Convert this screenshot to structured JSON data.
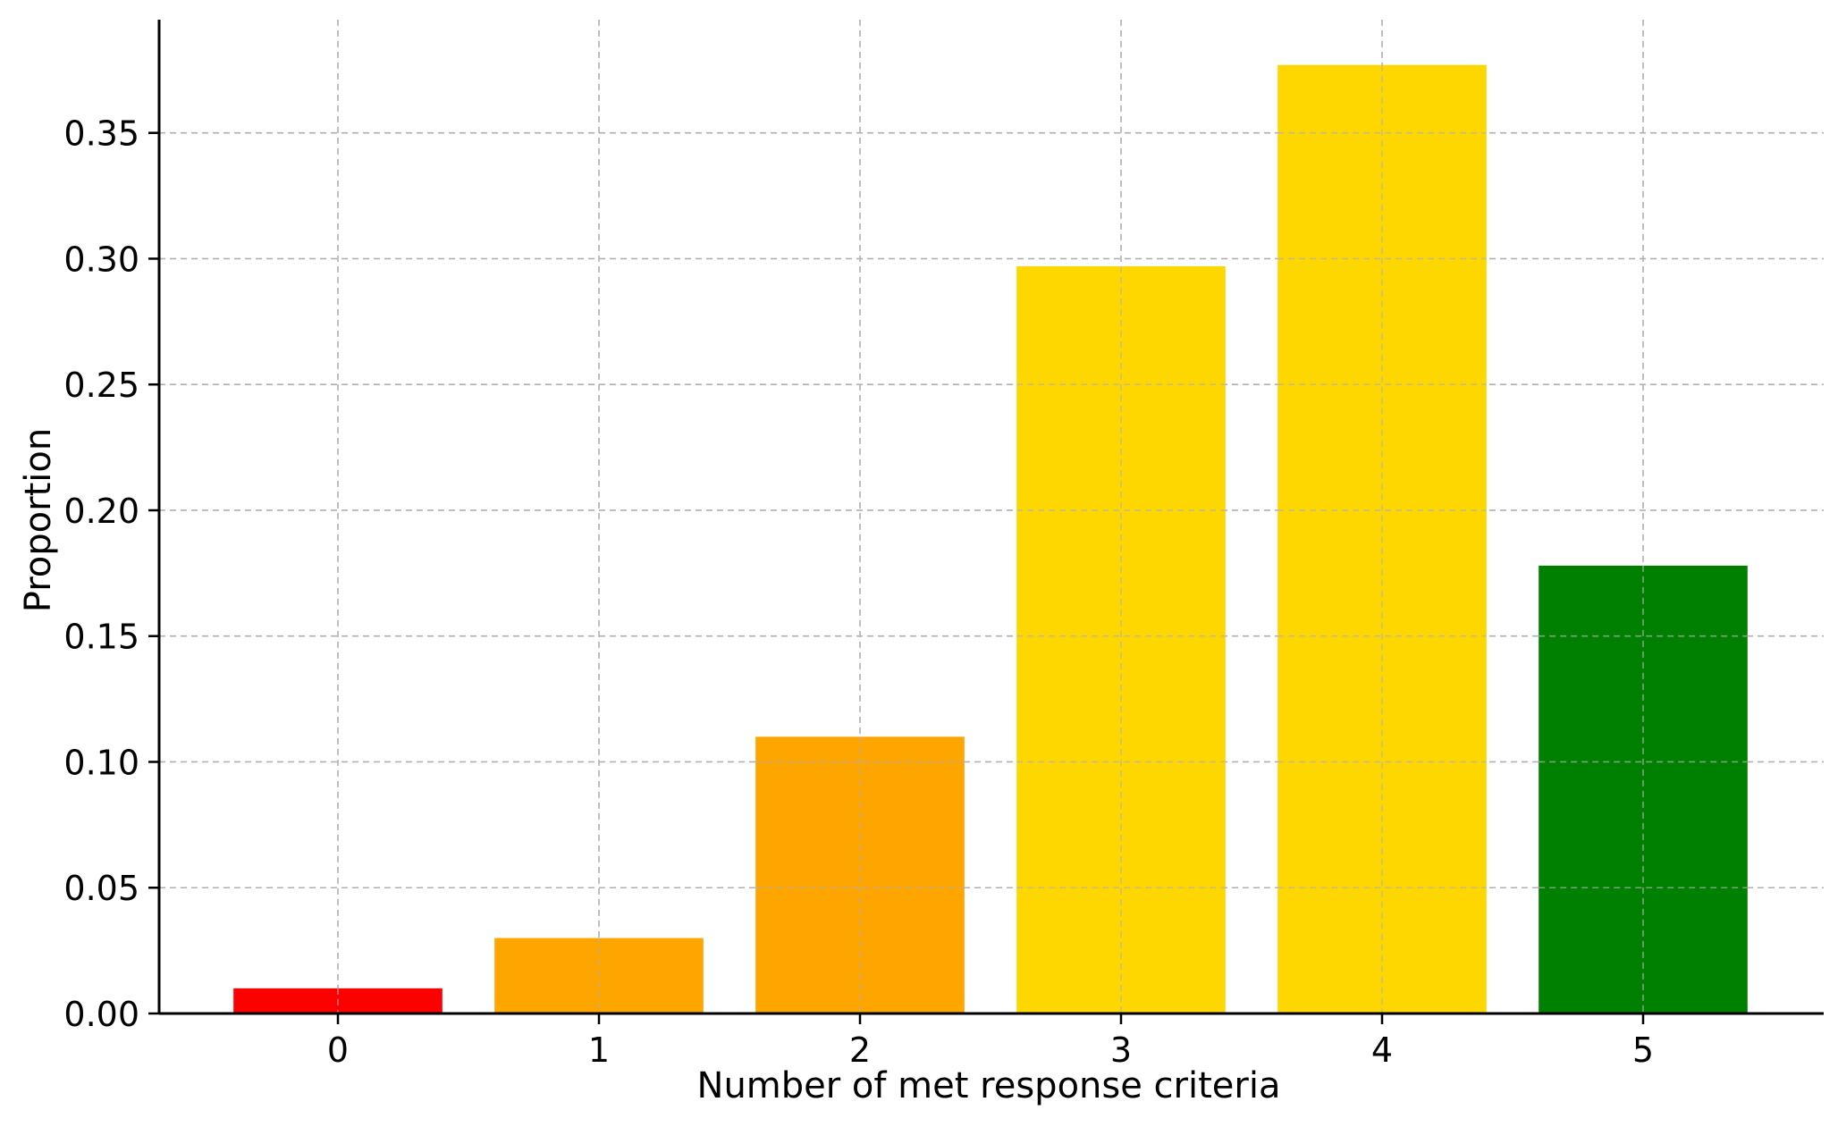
{
  "chart_data": {
    "type": "bar",
    "title": "",
    "xlabel": "Number of met response criteria",
    "ylabel": "Proportion",
    "categories": [
      "0",
      "1",
      "2",
      "3",
      "4",
      "5"
    ],
    "values": [
      0.01,
      0.03,
      0.11,
      0.297,
      0.377,
      0.178
    ],
    "bar_colors": [
      "#ff0000",
      "#ffa500",
      "#ffa500",
      "#ffd700",
      "#ffd700",
      "#008000"
    ],
    "ylim": [
      0,
      0.395
    ],
    "yticks": [
      0.0,
      0.05,
      0.1,
      0.15,
      0.2,
      0.25,
      0.3,
      0.35
    ],
    "ytick_labels": [
      "0.00",
      "0.05",
      "0.10",
      "0.15",
      "0.20",
      "0.25",
      "0.30",
      "0.35"
    ],
    "grid": true,
    "grid_color": "#b0b0b0",
    "legend": "none"
  }
}
